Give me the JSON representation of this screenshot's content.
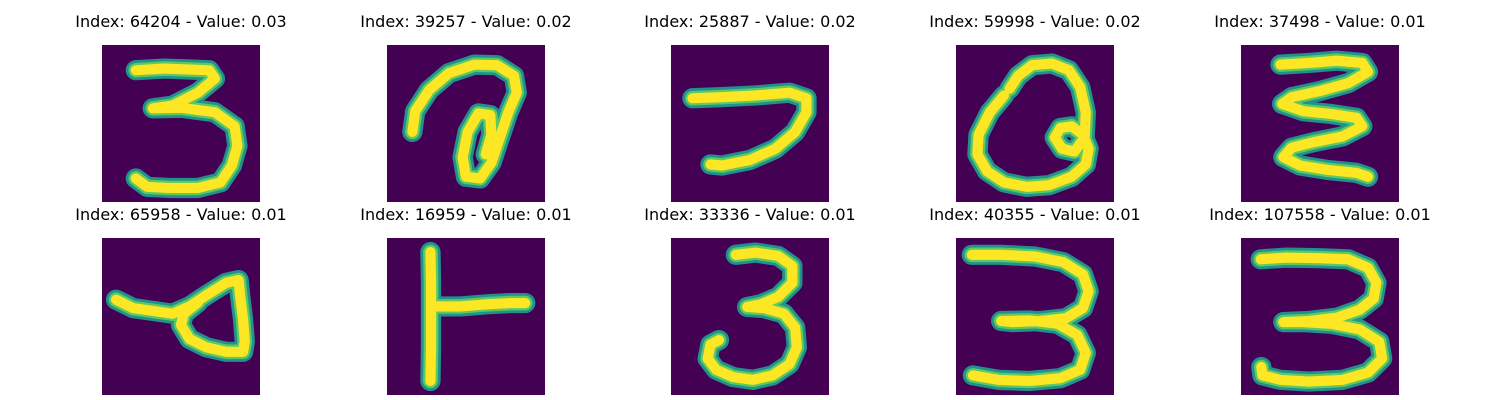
{
  "colors": {
    "background": "#440154",
    "stroke_outer": "#21918c",
    "stroke_mid": "#5ec962",
    "stroke_core": "#fde725"
  },
  "grid": [
    {
      "title": "Index: 64204 - Value: 0.03",
      "glyph": "digit-three-sample"
    },
    {
      "title": "Index: 39257 - Value: 0.02",
      "glyph": "curl-loop-sample"
    },
    {
      "title": "Index: 25887 - Value: 0.02",
      "glyph": "hook-sample"
    },
    {
      "title": "Index: 59998 - Value: 0.02",
      "glyph": "round-loop-sample"
    },
    {
      "title": "Index: 37498 - Value: 0.01",
      "glyph": "zigzag-sample"
    },
    {
      "title": "Index: 65958 - Value: 0.01",
      "glyph": "triangle-loop-sample"
    },
    {
      "title": "Index: 16959 - Value: 0.01",
      "glyph": "t-shape-sample"
    },
    {
      "title": "Index: 33336 - Value: 0.01",
      "glyph": "digit-three-sample"
    },
    {
      "title": "Index: 40355 - Value: 0.01",
      "glyph": "digit-three-sample"
    },
    {
      "title": "Index: 107558 - Value: 0.01",
      "glyph": "digit-three-sample"
    }
  ]
}
